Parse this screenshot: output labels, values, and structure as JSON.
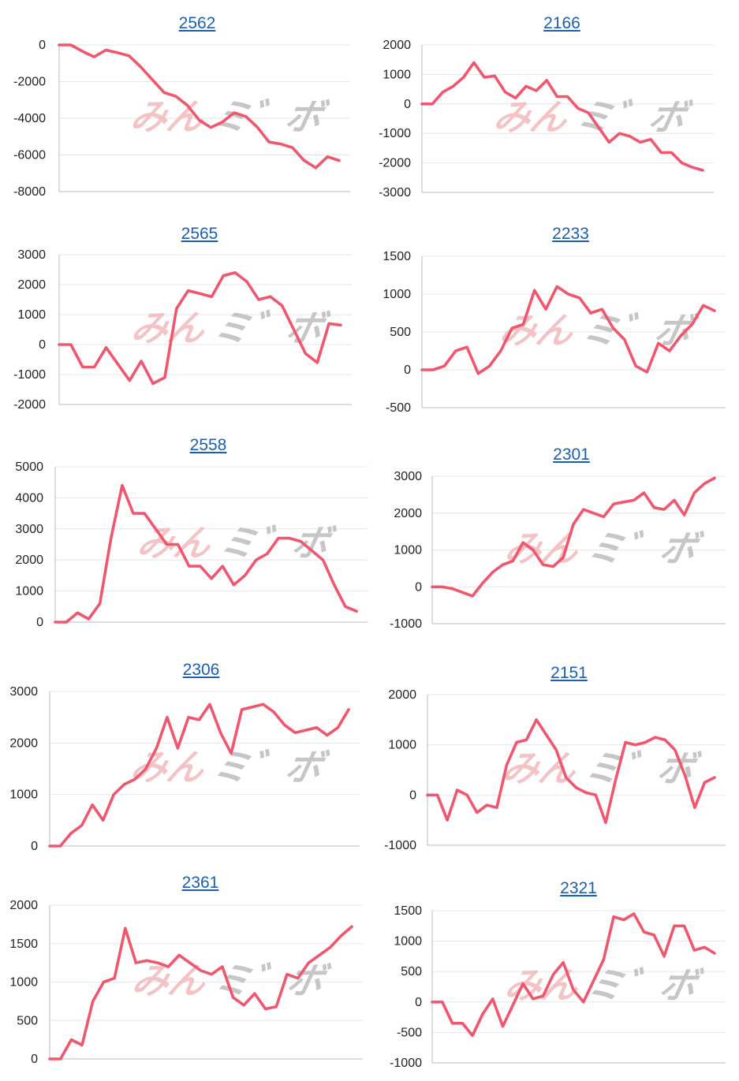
{
  "colors": {
    "line": "#f0566e",
    "grid": "#e6e6e6",
    "axis": "#bbbbbb",
    "title": "#1a5fb4",
    "watermark_left": "#f3b9bd",
    "watermark_right": "#bdbdbd"
  },
  "watermark": {
    "left": "みん",
    "right": "ミ゛ボ"
  },
  "chart_data": [
    {
      "type": "line",
      "title": "2562",
      "ylim": [
        -8000,
        0
      ],
      "yticks": [
        0,
        -2000,
        -4000,
        -6000,
        -8000
      ],
      "values": [
        0,
        0,
        -350,
        -650,
        -280,
        -420,
        -600,
        -1200,
        -1900,
        -2600,
        -2800,
        -3300,
        -4100,
        -4500,
        -4200,
        -3700,
        -3900,
        -4500,
        -5300,
        -5400,
        -5600,
        -6300,
        -6700,
        -6100,
        -6300
      ]
    },
    {
      "type": "line",
      "title": "2166",
      "ylim": [
        -3000,
        2000
      ],
      "yticks": [
        2000,
        1000,
        0,
        -1000,
        -2000,
        -3000
      ],
      "values": [
        0,
        0,
        400,
        600,
        900,
        1400,
        900,
        950,
        400,
        200,
        600,
        450,
        800,
        250,
        250,
        -150,
        -300,
        -800,
        -1300,
        -1000,
        -1100,
        -1300,
        -1200,
        -1650,
        -1650,
        -2000,
        -2150,
        -2250
      ]
    },
    {
      "type": "line",
      "title": "2565",
      "ylim": [
        -2000,
        3000
      ],
      "yticks": [
        3000,
        2000,
        1000,
        0,
        -1000,
        -2000
      ],
      "values": [
        0,
        0,
        -750,
        -750,
        -100,
        -650,
        -1200,
        -550,
        -1300,
        -1100,
        1200,
        1800,
        1700,
        1600,
        2300,
        2400,
        2100,
        1500,
        1600,
        1300,
        500,
        -300,
        -600,
        700,
        650
      ]
    },
    {
      "type": "line",
      "title": "2233",
      "ylim": [
        -500,
        1500
      ],
      "yticks": [
        1500,
        1000,
        500,
        0,
        -500
      ],
      "values": [
        0,
        0,
        50,
        250,
        300,
        -50,
        50,
        250,
        550,
        600,
        1050,
        800,
        1100,
        1000,
        950,
        750,
        800,
        550,
        400,
        50,
        -30,
        350,
        250,
        450,
        600,
        850,
        780
      ]
    },
    {
      "type": "line",
      "title": "2558",
      "ylim": [
        0,
        5000
      ],
      "yticks": [
        5000,
        4000,
        3000,
        2000,
        1000,
        0
      ],
      "values": [
        0,
        0,
        300,
        100,
        600,
        2700,
        4400,
        3500,
        3500,
        3000,
        2500,
        2500,
        1800,
        1800,
        1400,
        1800,
        1200,
        1500,
        2000,
        2200,
        2700,
        2700,
        2600,
        2300,
        2000,
        1200,
        500,
        350
      ]
    },
    {
      "type": "line",
      "title": "2301",
      "ylim": [
        -1000,
        3000
      ],
      "yticks": [
        3000,
        2000,
        1000,
        0,
        -1000
      ],
      "values": [
        0,
        0,
        -50,
        -150,
        -250,
        100,
        400,
        600,
        700,
        1200,
        1000,
        600,
        550,
        800,
        1700,
        2100,
        2000,
        1900,
        2250,
        2300,
        2350,
        2550,
        2150,
        2100,
        2350,
        1950,
        2550,
        2800,
        2950
      ]
    },
    {
      "type": "line",
      "title": "2306",
      "ylim": [
        0,
        3000
      ],
      "yticks": [
        3000,
        2000,
        1000,
        0
      ],
      "values": [
        0,
        0,
        250,
        400,
        800,
        500,
        1000,
        1200,
        1300,
        1500,
        1900,
        2500,
        1900,
        2500,
        2450,
        2750,
        2200,
        1800,
        2650,
        2700,
        2750,
        2600,
        2350,
        2200,
        2250,
        2300,
        2150,
        2300,
        2650
      ]
    },
    {
      "type": "line",
      "title": "2151",
      "ylim": [
        -1000,
        2000
      ],
      "yticks": [
        2000,
        1000,
        0,
        -1000
      ],
      "values": [
        0,
        0,
        -500,
        100,
        0,
        -350,
        -200,
        -250,
        600,
        1050,
        1100,
        1500,
        1200,
        900,
        350,
        150,
        50,
        0,
        -550,
        300,
        1050,
        1000,
        1050,
        1150,
        1100,
        900,
        400,
        -250,
        250,
        350
      ]
    },
    {
      "type": "line",
      "title": "2361",
      "ylim": [
        0,
        2000
      ],
      "yticks": [
        2000,
        1500,
        1000,
        500,
        0
      ],
      "values": [
        0,
        0,
        250,
        180,
        750,
        1000,
        1050,
        1700,
        1250,
        1280,
        1250,
        1200,
        1350,
        1250,
        1150,
        1100,
        1200,
        800,
        700,
        850,
        650,
        680,
        1100,
        1050,
        1250,
        1350,
        1450,
        1600,
        1720
      ]
    },
    {
      "type": "line",
      "title": "2321",
      "ylim": [
        -1000,
        1500
      ],
      "yticks": [
        1500,
        1000,
        500,
        0,
        -500,
        -1000
      ],
      "values": [
        0,
        0,
        -350,
        -350,
        -550,
        -200,
        50,
        -400,
        -50,
        300,
        50,
        100,
        450,
        650,
        200,
        0,
        350,
        700,
        1400,
        1350,
        1450,
        1150,
        1100,
        750,
        1250,
        1250,
        850,
        900,
        800
      ]
    }
  ]
}
